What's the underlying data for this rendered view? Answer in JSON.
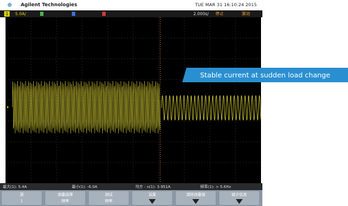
{
  "header": {
    "brand": "Agilent Technologies",
    "datetime": "TUE MAR 31 16:10:24 2015"
  },
  "status_bar": {
    "channel": "1",
    "scale": "5.0A/",
    "timebase": "2.000s/",
    "state": "停止",
    "mode": "滚动"
  },
  "annotation": "Stable current at sudden load change",
  "measurements": [
    "最大(1): 5.4A",
    "最小(1): -6.0A",
    "均方 - n(1): 3.951A",
    "频率(1): > 5.6Hz"
  ],
  "softkeys": [
    {
      "label": "源",
      "sub": "1"
    },
    {
      "label": "测量选择",
      "sub": "频率"
    },
    {
      "label": "测试",
      "sub": "频率"
    },
    {
      "label": "设置"
    },
    {
      "label": "清除测量值"
    },
    {
      "label": "统计信息"
    }
  ]
}
